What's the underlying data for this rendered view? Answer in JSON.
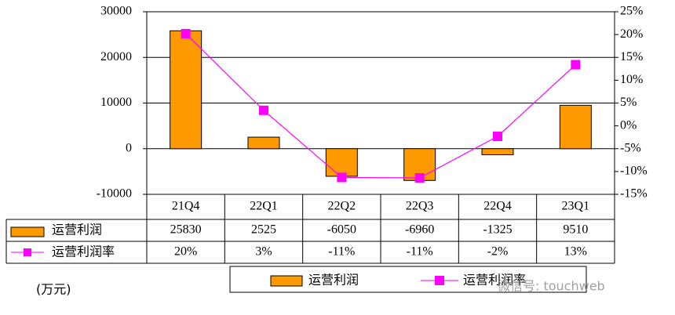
{
  "chart_data": {
    "type": "bar-line",
    "categories": [
      "21Q4",
      "22Q1",
      "22Q2",
      "22Q3",
      "22Q4",
      "23Q1"
    ],
    "series": [
      {
        "name": "运营利润",
        "color": "#ff9900",
        "values": [
          25830,
          2525,
          -6050,
          -6960,
          -1325,
          9510
        ]
      },
      {
        "name": "运营利润率",
        "color": "#ff00ff",
        "axis": "y2",
        "values": [
          20.2,
          3.4,
          -11.3,
          -11.4,
          -2.3,
          13.4
        ],
        "value_labels": [
          "20%",
          "3%",
          "-11%",
          "-11%",
          "-2%",
          "13%"
        ]
      }
    ],
    "ylim": [
      -10000,
      30000
    ],
    "yticks": [
      -10000,
      0,
      10000,
      20000,
      30000
    ],
    "y2lim": [
      -15,
      25
    ],
    "y2ticks": [
      {
        "value": -15,
        "label": "-15%"
      },
      {
        "value": -10,
        "label": "-10%"
      },
      {
        "value": -5,
        "label": "-5%"
      },
      {
        "value": 0,
        "label": "0%"
      },
      {
        "value": 5,
        "label": "5%"
      },
      {
        "value": 10,
        "label": "10%"
      },
      {
        "value": 15,
        "label": "15%"
      },
      {
        "value": 20,
        "label": "20%"
      },
      {
        "value": 25,
        "label": "25%"
      }
    ],
    "grid": true,
    "unit_note": "(万元)",
    "watermark": "微信号: touchweb"
  }
}
